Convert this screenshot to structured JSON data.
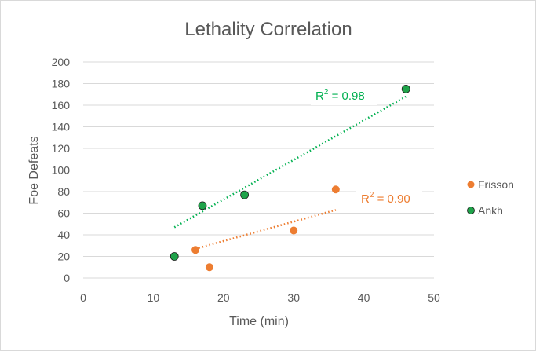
{
  "chart_data": {
    "type": "scatter",
    "title": "Lethality Correlation",
    "xlabel": "Time (min)",
    "ylabel": "Foe Defeats",
    "xlim": [
      0,
      50
    ],
    "ylim": [
      0,
      200
    ],
    "xticks": [
      0,
      10,
      20,
      30,
      40,
      50
    ],
    "yticks": [
      0,
      20,
      40,
      60,
      80,
      100,
      120,
      140,
      160,
      180,
      200
    ],
    "grid": true,
    "legend_position": "right",
    "series": [
      {
        "name": "Frisson",
        "color": "#ED7D31",
        "points": [
          [
            16,
            26
          ],
          [
            18,
            10
          ],
          [
            30,
            44
          ],
          [
            36,
            82
          ]
        ],
        "trendline": {
          "x_range": [
            16,
            36
          ],
          "y_range": [
            27,
            63
          ],
          "r2_label": "0.90"
        }
      },
      {
        "name": "Ankh",
        "color": "#00B050",
        "marker_fill": "#1FA34A",
        "points": [
          [
            13,
            20
          ],
          [
            17,
            67
          ],
          [
            23,
            77
          ],
          [
            46,
            175
          ]
        ],
        "trendline": {
          "x_range": [
            13,
            46
          ],
          "y_range": [
            47,
            168
          ],
          "r2_label": "0.98"
        }
      }
    ],
    "r2_prefix": "R",
    "r2_sup": "2",
    "r2_eq": " = "
  }
}
